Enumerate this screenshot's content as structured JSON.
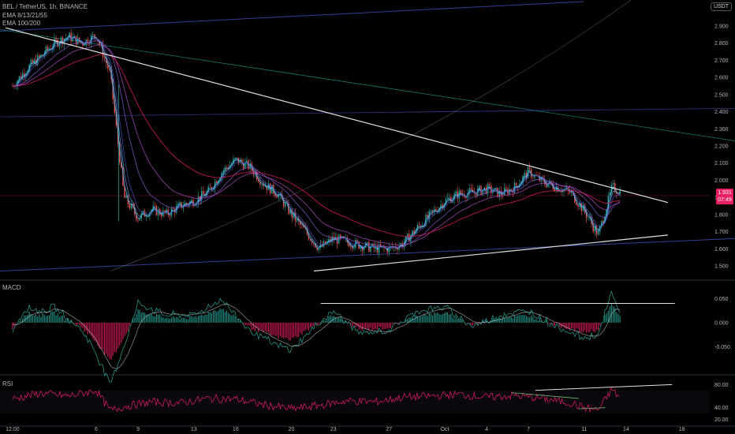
{
  "header": {
    "symbol_line": "BEL / TetherUS, 1h, BINANCE",
    "ema_line_1": "EMA 8/13/21/55",
    "ema_line_2": "EMA 100/200"
  },
  "currency_button": "USDT",
  "last_price": {
    "value": "1.931",
    "countdown": "07:49",
    "price": 1.931
  },
  "macd_label": "MACD",
  "rsi_label": "RSI",
  "colors": {
    "background": "#000000",
    "candle_up": "#26a69a",
    "candle_down": "#ef5350",
    "ema_fast": "#5b9bd5",
    "ema_slow": "#9c27b0",
    "trendline": "#e0e0e0",
    "hist_up": "#26a69a",
    "hist_down": "#e91e63",
    "rsi": "#e91e63"
  },
  "chart_data": [
    {
      "type": "candlestick",
      "pane": "price",
      "y_ticks": [
        "2.900",
        "2.800",
        "2.700",
        "2.600",
        "2.500",
        "2.400",
        "2.300",
        "2.200",
        "2.100",
        "2.000",
        "1.900",
        "1.800",
        "1.700",
        "1.600",
        "1.500"
      ],
      "ylim": [
        1.44,
        2.96
      ],
      "x_ticks": [
        "12:00",
        "6",
        "9",
        "13",
        "16",
        "20",
        "23",
        "27",
        "Oct",
        "4",
        "7",
        "11",
        "14",
        "18"
      ],
      "x_tick_days": [
        0,
        6,
        9,
        13,
        16,
        20,
        23,
        27,
        31,
        34,
        37,
        41,
        44,
        48
      ],
      "xlim_days": [
        -0.9,
        50
      ],
      "close_path": [
        [
          0,
          2.55
        ],
        [
          1,
          2.65
        ],
        [
          2,
          2.72
        ],
        [
          3,
          2.8
        ],
        [
          4,
          2.84
        ],
        [
          5,
          2.8
        ],
        [
          6,
          2.85
        ],
        [
          7,
          2.62
        ],
        [
          8,
          1.9
        ],
        [
          9,
          1.78
        ],
        [
          10,
          1.83
        ],
        [
          11,
          1.8
        ],
        [
          12,
          1.85
        ],
        [
          13,
          1.88
        ],
        [
          14,
          1.93
        ],
        [
          15,
          2.05
        ],
        [
          16,
          2.12
        ],
        [
          17,
          2.08
        ],
        [
          18,
          1.98
        ],
        [
          19,
          1.92
        ],
        [
          20,
          1.8
        ],
        [
          21,
          1.7
        ],
        [
          22,
          1.6
        ],
        [
          23,
          1.66
        ],
        [
          24,
          1.64
        ],
        [
          25,
          1.62
        ],
        [
          26,
          1.6
        ],
        [
          27,
          1.6
        ],
        [
          28,
          1.63
        ],
        [
          29,
          1.72
        ],
        [
          30,
          1.8
        ],
        [
          31,
          1.88
        ],
        [
          32,
          1.92
        ],
        [
          33,
          1.93
        ],
        [
          34,
          1.95
        ],
        [
          35,
          1.92
        ],
        [
          36,
          1.96
        ],
        [
          37,
          2.05
        ],
        [
          38,
          1.99
        ],
        [
          39,
          1.96
        ],
        [
          40,
          1.93
        ],
        [
          41,
          1.82
        ],
        [
          42,
          1.68
        ],
        [
          43,
          1.96
        ],
        [
          43.6,
          1.93
        ]
      ],
      "last_price": 1.931
    },
    {
      "type": "bar",
      "pane": "macd",
      "y_ticks": [
        "0.050",
        "0.000",
        "-0.050"
      ],
      "ylim": [
        -0.1,
        0.08
      ],
      "hist_path": [
        [
          0,
          -0.01
        ],
        [
          1,
          0.02
        ],
        [
          2,
          0.015
        ],
        [
          3,
          0.02
        ],
        [
          5,
          -0.01
        ],
        [
          6,
          -0.04
        ],
        [
          7,
          -0.08
        ],
        [
          8,
          -0.03
        ],
        [
          9,
          0.025
        ],
        [
          11,
          0.01
        ],
        [
          13,
          0.01
        ],
        [
          15,
          0.03
        ],
        [
          17,
          -0.01
        ],
        [
          19,
          -0.03
        ],
        [
          20,
          -0.035
        ],
        [
          22,
          0.0
        ],
        [
          23,
          0.015
        ],
        [
          25,
          -0.015
        ],
        [
          27,
          -0.01
        ],
        [
          29,
          0.015
        ],
        [
          31,
          0.02
        ],
        [
          33,
          -0.005
        ],
        [
          35,
          0.01
        ],
        [
          37,
          0.015
        ],
        [
          39,
          -0.005
        ],
        [
          41,
          -0.02
        ],
        [
          42,
          -0.015
        ],
        [
          43,
          0.04
        ],
        [
          43.6,
          0.01
        ]
      ],
      "resistance_level": 0.04
    },
    {
      "type": "line",
      "pane": "rsi",
      "y_ticks": [
        "80.00",
        "40.00",
        "20.00"
      ],
      "ylim": [
        15,
        90
      ],
      "rsi_path": [
        [
          0,
          55
        ],
        [
          2,
          65
        ],
        [
          4,
          60
        ],
        [
          6,
          70
        ],
        [
          7,
          35
        ],
        [
          8,
          42
        ],
        [
          10,
          50
        ],
        [
          12,
          48
        ],
        [
          14,
          56
        ],
        [
          16,
          55
        ],
        [
          18,
          45
        ],
        [
          20,
          38
        ],
        [
          22,
          44
        ],
        [
          24,
          52
        ],
        [
          26,
          50
        ],
        [
          28,
          58
        ],
        [
          30,
          60
        ],
        [
          32,
          63
        ],
        [
          34,
          58
        ],
        [
          36,
          61
        ],
        [
          38,
          56
        ],
        [
          40,
          48
        ],
        [
          41,
          40
        ],
        [
          42,
          36
        ],
        [
          43,
          72
        ],
        [
          43.6,
          55
        ]
      ]
    }
  ]
}
